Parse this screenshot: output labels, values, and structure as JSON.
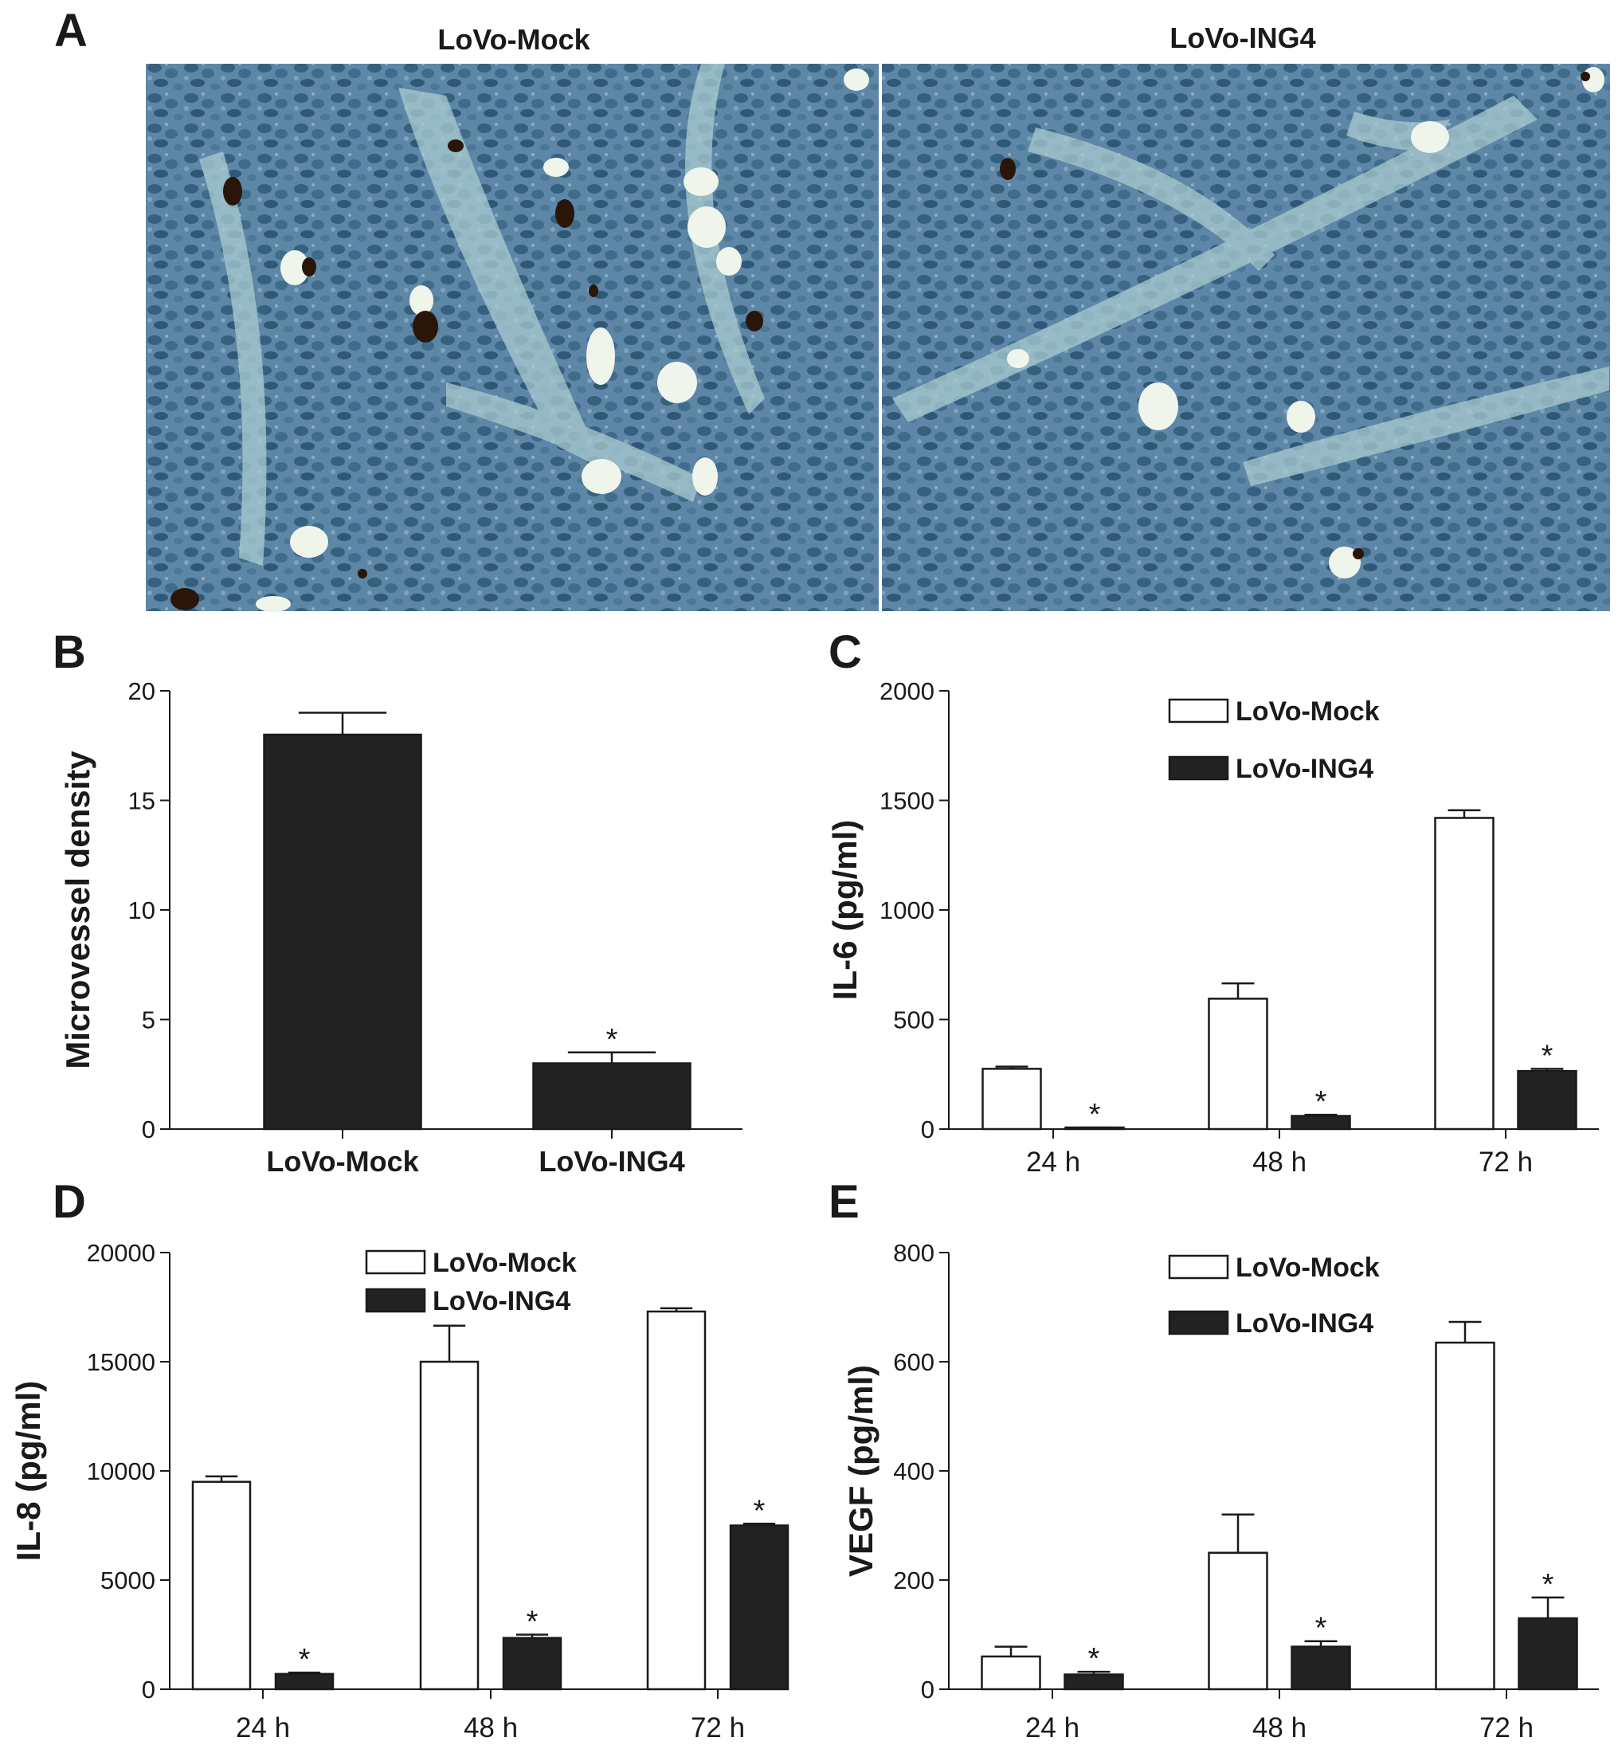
{
  "panel_a": {
    "letter": "A",
    "images": [
      {
        "title": "LoVo-Mock",
        "vessel_count": "high"
      },
      {
        "title": "LoVo-ING4",
        "vessel_count": "low"
      }
    ],
    "colors": {
      "tissue": "#5e86a6",
      "stroma": "#a9cbd0",
      "vessel_stain": "#2a1608"
    }
  },
  "chart_data": [
    {
      "letter": "B",
      "type": "bar",
      "ylabel": "Microvessel density",
      "ylim": [
        0,
        20
      ],
      "yticks": [
        0,
        5,
        10,
        15,
        20
      ],
      "categories": [
        "LoVo-Mock",
        "LoVo-ING4"
      ],
      "values": [
        18,
        3
      ],
      "errors": [
        1,
        0.5
      ],
      "significant": [
        false,
        true
      ],
      "bar_color": "#222222"
    },
    {
      "letter": "C",
      "type": "bar",
      "ylabel": "IL-6 (pg/ml)",
      "ylim": [
        0,
        2000
      ],
      "yticks": [
        0,
        500,
        1000,
        1500,
        2000
      ],
      "categories": [
        "24 h",
        "48 h",
        "72 h"
      ],
      "legend_position": "top-center",
      "series": [
        {
          "name": "LoVo-Mock",
          "fill": "#ffffff",
          "values": [
            275,
            595,
            1420
          ],
          "errors": [
            10,
            70,
            35
          ],
          "significant": [
            false,
            false,
            false
          ]
        },
        {
          "name": "LoVo-ING4",
          "fill": "#222222",
          "values": [
            5,
            60,
            265
          ],
          "errors": [
            2,
            5,
            10
          ],
          "significant": [
            true,
            true,
            true
          ]
        }
      ]
    },
    {
      "letter": "D",
      "type": "bar",
      "ylabel": "IL-8 (pg/ml)",
      "ylim": [
        0,
        20000
      ],
      "yticks": [
        0,
        5000,
        10000,
        15000,
        20000
      ],
      "categories": [
        "24 h",
        "48 h",
        "72 h"
      ],
      "legend_position": "top-center",
      "series": [
        {
          "name": "LoVo-Mock",
          "fill": "#ffffff",
          "values": [
            9500,
            15000,
            17300
          ],
          "errors": [
            250,
            1650,
            150
          ],
          "significant": [
            false,
            false,
            false
          ]
        },
        {
          "name": "LoVo-ING4",
          "fill": "#222222",
          "values": [
            700,
            2350,
            7500
          ],
          "errors": [
            60,
            150,
            80
          ],
          "significant": [
            true,
            true,
            true
          ]
        }
      ]
    },
    {
      "letter": "E",
      "type": "bar",
      "ylabel": "VEGF (pg/ml)",
      "ylim": [
        0,
        800
      ],
      "yticks": [
        0,
        200,
        400,
        600,
        800
      ],
      "categories": [
        "24 h",
        "48 h",
        "72 h"
      ],
      "legend_position": "top-center",
      "series": [
        {
          "name": "LoVo-Mock",
          "fill": "#ffffff",
          "values": [
            60,
            250,
            635
          ],
          "errors": [
            18,
            70,
            38
          ],
          "significant": [
            false,
            false,
            false
          ]
        },
        {
          "name": "LoVo-ING4",
          "fill": "#222222",
          "values": [
            27,
            78,
            130
          ],
          "errors": [
            5,
            10,
            38
          ],
          "significant": [
            true,
            true,
            true
          ]
        }
      ]
    }
  ]
}
